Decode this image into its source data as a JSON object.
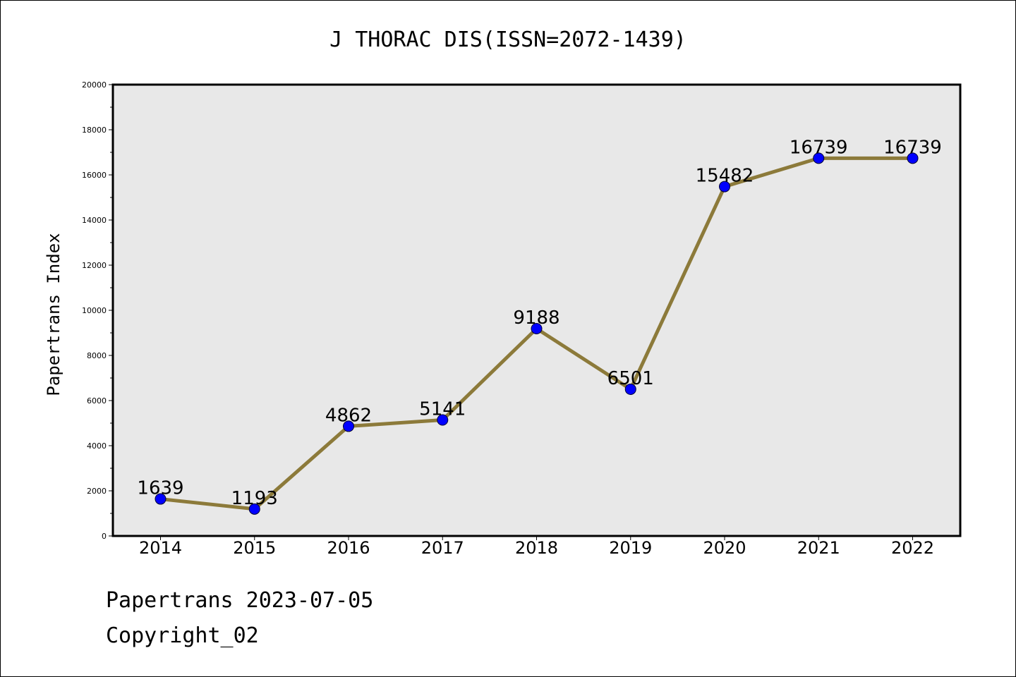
{
  "chart_data": {
    "type": "line",
    "title": "J THORAC DIS(ISSN=2072-1439)",
    "xlabel": "",
    "ylabel": "Papertrans Index",
    "x": [
      "2014",
      "2015",
      "2016",
      "2017",
      "2018",
      "2019",
      "2020",
      "2021",
      "2022"
    ],
    "series": [
      {
        "values": [
          1639,
          1193,
          4862,
          5141,
          9188,
          6501,
          15482,
          16739,
          16739
        ]
      }
    ],
    "data_labels": [
      "1639",
      "1193",
      "4862",
      "5141",
      "9188",
      "6501",
      "15482",
      "16739",
      "16739"
    ],
    "ylim": [
      0,
      20000
    ],
    "yticks": [
      "0",
      "2000",
      "4000",
      "6000",
      "8000",
      "10000",
      "12000",
      "14000",
      "16000",
      "18000",
      "20000"
    ],
    "grid": false,
    "legend": "none",
    "colors": {
      "line": "#8c7a3a",
      "marker": "#0000ff",
      "plot_bg": "#e8e8e8"
    }
  },
  "footer": {
    "date_line": "Papertrans 2023-07-05",
    "copyright": "Copyright_02"
  }
}
